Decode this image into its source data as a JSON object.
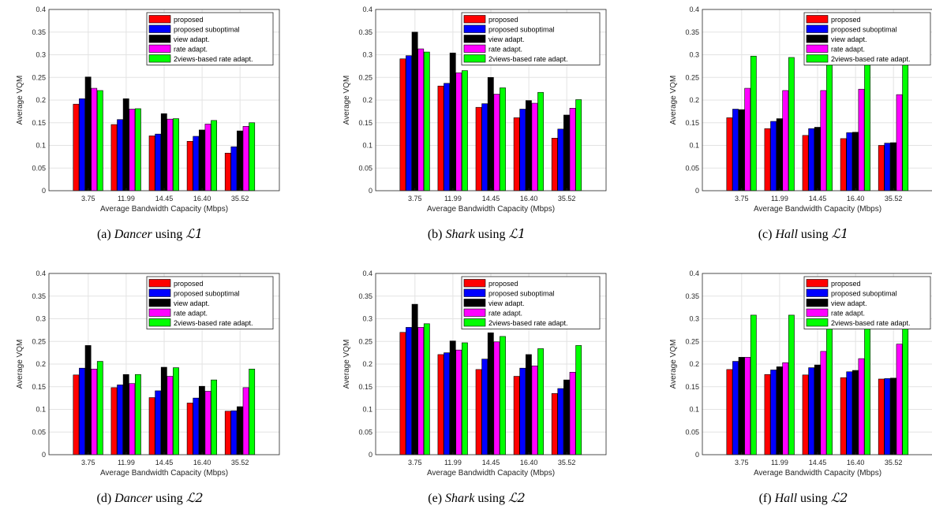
{
  "legend_labels": [
    "proposed",
    "proposed suboptimal",
    "view adapt.",
    "rate adapt.",
    "2views-based rate adapt."
  ],
  "series_colors": [
    "#ff0000",
    "#0000ff",
    "#000000",
    "#ff00ff",
    "#00ff00"
  ],
  "chart_data": [
    {
      "type": "bar",
      "categories": [
        "3.75",
        "11.99",
        "14.45",
        "16.40",
        "35.52"
      ],
      "xlabel": "Average Bandwidth Capacity (Mbps)",
      "ylabel": "Average VQM",
      "ylim": [
        0,
        0.4
      ],
      "yticks": [
        "0",
        "0.05",
        "0.1",
        "0.15",
        "0.2",
        "0.25",
        "0.3",
        "0.35",
        "0.4"
      ],
      "grid": true,
      "legend": "top-right",
      "caption": {
        "label": "(a)",
        "dataset": "Dancer",
        "using": "using",
        "metric": "ℒ1"
      },
      "series": [
        {
          "name": "proposed",
          "values": [
            0.191,
            0.146,
            0.121,
            0.109,
            0.083
          ]
        },
        {
          "name": "proposed suboptimal",
          "values": [
            0.203,
            0.157,
            0.125,
            0.12,
            0.097
          ]
        },
        {
          "name": "view adapt.",
          "values": [
            0.251,
            0.203,
            0.17,
            0.134,
            0.132
          ]
        },
        {
          "name": "rate adapt.",
          "values": [
            0.226,
            0.18,
            0.158,
            0.147,
            0.142
          ]
        },
        {
          "name": "2views-based rate adapt.",
          "values": [
            0.221,
            0.181,
            0.159,
            0.155,
            0.15
          ]
        }
      ]
    },
    {
      "type": "bar",
      "categories": [
        "3.75",
        "11.99",
        "14.45",
        "16.40",
        "35.52"
      ],
      "xlabel": "Average Bandwidth Capacity (Mbps)",
      "ylabel": "Average VQM",
      "ylim": [
        0,
        0.4
      ],
      "yticks": [
        "0",
        "0.05",
        "0.1",
        "0.15",
        "0.2",
        "0.25",
        "0.3",
        "0.35",
        "0.4"
      ],
      "grid": true,
      "legend": "top-right",
      "caption": {
        "label": "(b)",
        "dataset": "Shark",
        "using": "using",
        "metric": "ℒ1"
      },
      "series": [
        {
          "name": "proposed",
          "values": [
            0.291,
            0.231,
            0.184,
            0.161,
            0.116
          ]
        },
        {
          "name": "proposed suboptimal",
          "values": [
            0.298,
            0.237,
            0.192,
            0.18,
            0.136
          ]
        },
        {
          "name": "view adapt.",
          "values": [
            0.35,
            0.304,
            0.25,
            0.199,
            0.167
          ]
        },
        {
          "name": "rate adapt.",
          "values": [
            0.313,
            0.26,
            0.213,
            0.193,
            0.182
          ]
        },
        {
          "name": "2views-based rate adapt.",
          "values": [
            0.306,
            0.265,
            0.227,
            0.217,
            0.201
          ]
        }
      ]
    },
    {
      "type": "bar",
      "categories": [
        "3.75",
        "11.99",
        "14.45",
        "16.40",
        "35.52"
      ],
      "xlabel": "Average Bandwidth Capacity (Mbps)",
      "ylabel": "Average VQM",
      "ylim": [
        0,
        0.4
      ],
      "yticks": [
        "0",
        "0.05",
        "0.1",
        "0.15",
        "0.2",
        "0.25",
        "0.3",
        "0.35",
        "0.4"
      ],
      "grid": true,
      "legend": "top-right",
      "caption": {
        "label": "(c)",
        "dataset": "Hall",
        "using": "using",
        "metric": "ℒ1"
      },
      "series": [
        {
          "name": "proposed",
          "values": [
            0.161,
            0.137,
            0.122,
            0.115,
            0.1
          ]
        },
        {
          "name": "proposed suboptimal",
          "values": [
            0.18,
            0.153,
            0.137,
            0.128,
            0.105
          ]
        },
        {
          "name": "view adapt.",
          "values": [
            0.179,
            0.159,
            0.14,
            0.129,
            0.106
          ]
        },
        {
          "name": "rate adapt.",
          "values": [
            0.226,
            0.221,
            0.221,
            0.224,
            0.212
          ]
        },
        {
          "name": "2views-based rate adapt.",
          "values": [
            0.297,
            0.294,
            0.292,
            0.296,
            0.295
          ]
        }
      ]
    },
    {
      "type": "bar",
      "categories": [
        "3.75",
        "11.99",
        "14.45",
        "16.40",
        "35.52"
      ],
      "xlabel": "Average Bandwidth Capacity (Mbps)",
      "ylabel": "Average VQM",
      "ylim": [
        0,
        0.4
      ],
      "yticks": [
        "0",
        "0.05",
        "0.1",
        "0.15",
        "0.2",
        "0.25",
        "0.3",
        "0.35",
        "0.4"
      ],
      "grid": true,
      "legend": "top-right",
      "caption": {
        "label": "(d)",
        "dataset": "Dancer",
        "using": "using",
        "metric": "ℒ2"
      },
      "series": [
        {
          "name": "proposed",
          "values": [
            0.176,
            0.148,
            0.126,
            0.114,
            0.096
          ]
        },
        {
          "name": "proposed suboptimal",
          "values": [
            0.191,
            0.154,
            0.141,
            0.125,
            0.097
          ]
        },
        {
          "name": "view adapt.",
          "values": [
            0.241,
            0.177,
            0.193,
            0.151,
            0.106
          ]
        },
        {
          "name": "rate adapt.",
          "values": [
            0.189,
            0.157,
            0.173,
            0.14,
            0.148
          ]
        },
        {
          "name": "2views-based rate adapt.",
          "values": [
            0.206,
            0.177,
            0.192,
            0.165,
            0.189
          ]
        }
      ]
    },
    {
      "type": "bar",
      "categories": [
        "3.75",
        "11.99",
        "14.45",
        "16.40",
        "35.52"
      ],
      "xlabel": "Average Bandwidth Capacity (Mbps)",
      "ylabel": "Average VQM",
      "ylim": [
        0,
        0.4
      ],
      "yticks": [
        "0",
        "0.05",
        "0.1",
        "0.15",
        "0.2",
        "0.25",
        "0.3",
        "0.35",
        "0.4"
      ],
      "grid": true,
      "legend": "top-right",
      "caption": {
        "label": "(e)",
        "dataset": "Shark",
        "using": "using",
        "metric": "ℒ2"
      },
      "series": [
        {
          "name": "proposed",
          "values": [
            0.27,
            0.221,
            0.188,
            0.173,
            0.135
          ]
        },
        {
          "name": "proposed suboptimal",
          "values": [
            0.281,
            0.225,
            0.211,
            0.191,
            0.146
          ]
        },
        {
          "name": "view adapt.",
          "values": [
            0.332,
            0.251,
            0.269,
            0.221,
            0.165
          ]
        },
        {
          "name": "rate adapt.",
          "values": [
            0.281,
            0.231,
            0.249,
            0.196,
            0.182
          ]
        },
        {
          "name": "2views-based rate adapt.",
          "values": [
            0.289,
            0.247,
            0.261,
            0.234,
            0.241
          ]
        }
      ]
    },
    {
      "type": "bar",
      "categories": [
        "3.75",
        "11.99",
        "14.45",
        "16.40",
        "35.52"
      ],
      "xlabel": "Average Bandwidth Capacity (Mbps)",
      "ylabel": "Average VQM",
      "ylim": [
        0,
        0.4
      ],
      "yticks": [
        "0",
        "0.05",
        "0.1",
        "0.15",
        "0.2",
        "0.25",
        "0.3",
        "0.35",
        "0.4"
      ],
      "grid": true,
      "legend": "top-right",
      "caption": {
        "label": "(f)",
        "dataset": "Hall",
        "using": "using",
        "metric": "ℒ2"
      },
      "series": [
        {
          "name": "proposed",
          "values": [
            0.188,
            0.177,
            0.176,
            0.17,
            0.167
          ]
        },
        {
          "name": "proposed suboptimal",
          "values": [
            0.206,
            0.187,
            0.192,
            0.183,
            0.168
          ]
        },
        {
          "name": "view adapt.",
          "values": [
            0.215,
            0.194,
            0.198,
            0.186,
            0.169
          ]
        },
        {
          "name": "rate adapt.",
          "values": [
            0.215,
            0.203,
            0.228,
            0.212,
            0.244
          ]
        },
        {
          "name": "2views-based rate adapt.",
          "values": [
            0.308,
            0.308,
            0.304,
            0.306,
            0.306
          ]
        }
      ]
    }
  ]
}
